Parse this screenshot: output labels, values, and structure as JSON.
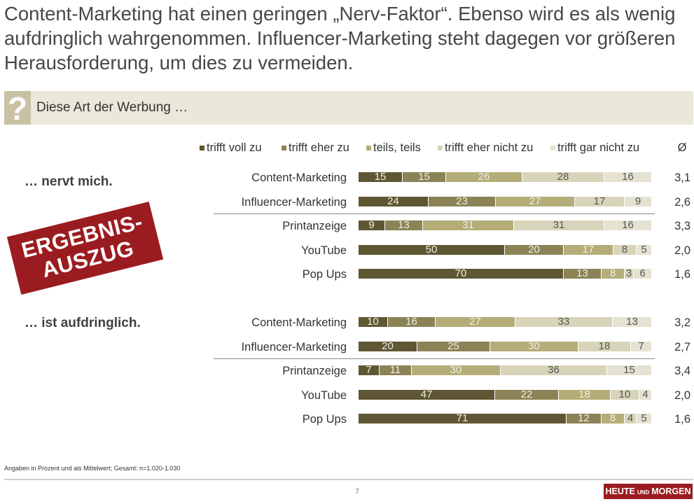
{
  "slide": {
    "title": "Content-Marketing hat einen geringen „Nerv-Faktor“. Ebenso wird es als wenig aufdringlich wahrgenommen. Influencer-Marketing steht dagegen vor größeren Herausforderung, um dies zu vermeiden.",
    "question": {
      "icon": "question-mark-icon",
      "symbol": "?",
      "text": "Diese Art der Werbung …"
    },
    "stamp": {
      "line1": "ERGEBNIS-",
      "line2": "AUSZUG"
    },
    "footnote": "Angaben in Prozent und als Mittelwert; Gesamt: n=1.020-1.030",
    "page_number": "7",
    "logo": {
      "word1": "HEUTE",
      "word2": "UND",
      "word3": "MORGEN"
    }
  },
  "colors": {
    "segments": [
      "#5f5733",
      "#8b8356",
      "#b4ad77",
      "#d8d4b9",
      "#e5e2d1"
    ],
    "question_bar": "#ebe8da",
    "question_icon": "#c8c1a3",
    "brand_red": "#9b1c20",
    "label_light": "#f1eee4",
    "label_dark": "#555555"
  },
  "chart_data": {
    "type": "bar",
    "orientation": "horizontal",
    "stacked": true,
    "xlim": [
      0,
      100
    ],
    "legend_position": "top",
    "legend": [
      "trifft voll zu",
      "trifft eher zu",
      "teils, teils",
      "trifft eher nicht zu",
      "trifft gar nicht zu"
    ],
    "mean_header": "Ø",
    "groups": [
      {
        "label": "… nervt mich.",
        "rows": [
          {
            "category": "Content-Marketing",
            "values": [
              15,
              15,
              26,
              28,
              16
            ],
            "mean": "3,1"
          },
          {
            "category": "Influencer-Marketing",
            "values": [
              24,
              23,
              27,
              17,
              9
            ],
            "mean": "2,6"
          },
          {
            "category": "Printanzeige",
            "values": [
              9,
              13,
              31,
              31,
              16
            ],
            "mean": "3,3"
          },
          {
            "category": "YouTube",
            "values": [
              50,
              20,
              17,
              8,
              5
            ],
            "mean": "2,0"
          },
          {
            "category": "Pop Ups",
            "values": [
              70,
              13,
              8,
              3,
              6
            ],
            "mean": "1,6"
          }
        ]
      },
      {
        "label": "… ist aufdringlich.",
        "rows": [
          {
            "category": "Content-Marketing",
            "values": [
              10,
              16,
              27,
              33,
              13
            ],
            "mean": "3,2"
          },
          {
            "category": "Influencer-Marketing",
            "values": [
              20,
              25,
              30,
              18,
              7
            ],
            "mean": "2,7"
          },
          {
            "category": "Printanzeige",
            "values": [
              7,
              11,
              30,
              36,
              15
            ],
            "mean": "3,4"
          },
          {
            "category": "YouTube",
            "values": [
              47,
              22,
              18,
              10,
              4
            ],
            "mean": "2,0"
          },
          {
            "category": "Pop Ups",
            "values": [
              71,
              12,
              8,
              4,
              5
            ],
            "mean": "1,6"
          }
        ]
      }
    ]
  }
}
